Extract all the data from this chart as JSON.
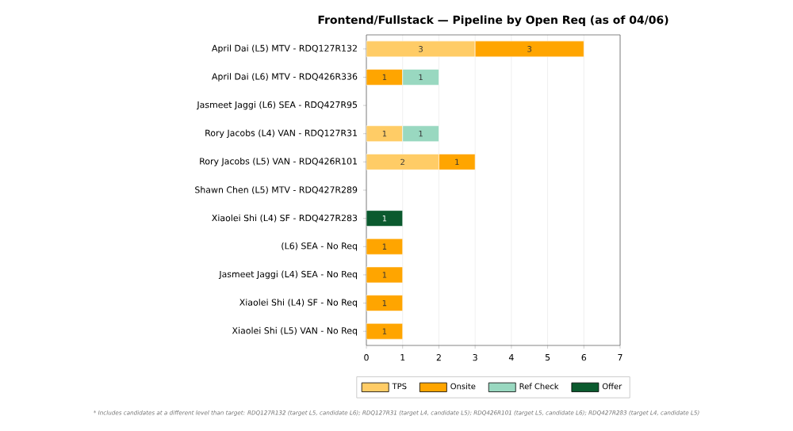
{
  "chart_data": {
    "type": "bar",
    "orientation": "horizontal",
    "stacked": true,
    "title": "Frontend/Fullstack — Pipeline by Open Req (as of 04/06)",
    "categories": [
      "April Dai (L5) MTV - RDQ127R132",
      "April Dai (L6) MTV - RDQ426R336",
      "Jasmeet Jaggi (L6) SEA - RDQ427R95",
      "Rory Jacobs (L4) VAN - RDQ127R31",
      "Rory Jacobs (L5) VAN - RDQ426R101",
      "Shawn Chen (L5) MTV - RDQ427R289",
      "Xiaolei Shi (L4) SF - RDQ427R283",
      "(L6) SEA - No Req",
      "Jasmeet Jaggi (L4) SEA - No Req",
      "Xiaolei Shi (L4) SF - No Req",
      "Xiaolei Shi (L5) VAN - No Req"
    ],
    "series": [
      {
        "name": "TPS",
        "color": "#ffcc66",
        "values": [
          3,
          null,
          null,
          1,
          2,
          null,
          null,
          null,
          null,
          null,
          null
        ]
      },
      {
        "name": "Onsite",
        "color": "#ffa500",
        "values": [
          3,
          1,
          null,
          null,
          1,
          null,
          null,
          1,
          1,
          1,
          1
        ]
      },
      {
        "name": "Ref Check",
        "color": "#99d8c0",
        "values": [
          null,
          1,
          null,
          1,
          null,
          null,
          null,
          null,
          null,
          null,
          null
        ]
      },
      {
        "name": "Offer",
        "color": "#0b5a2e",
        "values": [
          null,
          null,
          null,
          null,
          null,
          null,
          1,
          null,
          null,
          null,
          null
        ]
      }
    ],
    "xlim": [
      0,
      7
    ],
    "xticks": [
      0,
      1,
      2,
      3,
      4,
      5,
      6,
      7
    ],
    "grid": "x",
    "legend": "bottom",
    "data_labels": true,
    "annotations": [
      "* Includes candidates at a different level than target: RDQ127R132 (target L5, candidate L6); RDQ127R31 (target L4, candidate L5); RDQ426R101 (target L5, candidate L6); RDQ427R283 (target L4, candidate L5)"
    ]
  }
}
